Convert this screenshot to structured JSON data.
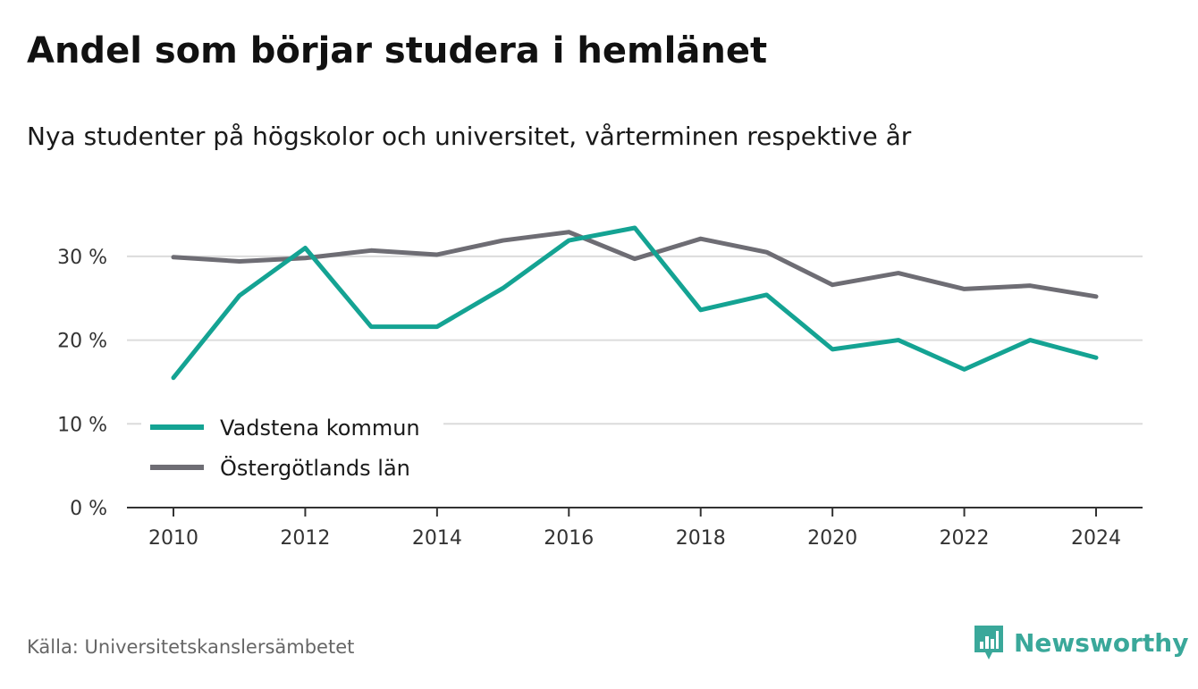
{
  "header": {
    "title": "Andel som börjar studera i hemlänet",
    "subtitle": "Nya studenter på högskolor och universitet, vårterminen respektive år"
  },
  "footer": {
    "source": "Källa: Universitetskanslersämbetet",
    "brand": "Newsworthy",
    "brand_icon": "bar-chart-icon"
  },
  "colors": {
    "vadstena": "#14a393",
    "ostergotland": "#6e6d74",
    "grid": "#dcdcdc",
    "axis": "#333333",
    "brand": "#3aa89a"
  },
  "chart_data": {
    "type": "line",
    "title": "Andel som börjar studera i hemlänet",
    "subtitle": "Nya studenter på högskolor och universitet, vårterminen respektive år",
    "x": [
      2010,
      2011,
      2012,
      2013,
      2014,
      2015,
      2016,
      2017,
      2018,
      2019,
      2020,
      2021,
      2022,
      2023,
      2024
    ],
    "x_ticks": [
      2010,
      2012,
      2014,
      2016,
      2018,
      2020,
      2022,
      2024
    ],
    "y_ticks": [
      0,
      10,
      20,
      30
    ],
    "y_tick_labels": [
      "0 %",
      "10 %",
      "20 %",
      "30 %"
    ],
    "ylim": [
      0,
      35
    ],
    "grid": true,
    "legend_position": "bottom-left",
    "series": [
      {
        "name": "Vadstena kommun",
        "color": "#14a393",
        "values": [
          15.5,
          25.3,
          31.0,
          21.6,
          21.6,
          26.2,
          31.9,
          33.4,
          23.6,
          25.4,
          18.9,
          20.0,
          16.5,
          20.0,
          17.9
        ]
      },
      {
        "name": "Östergötlands län",
        "color": "#6e6d74",
        "values": [
          29.9,
          29.4,
          29.8,
          30.7,
          30.2,
          31.9,
          32.9,
          29.7,
          32.1,
          30.5,
          26.6,
          28.0,
          26.1,
          26.5,
          25.2
        ]
      }
    ]
  }
}
